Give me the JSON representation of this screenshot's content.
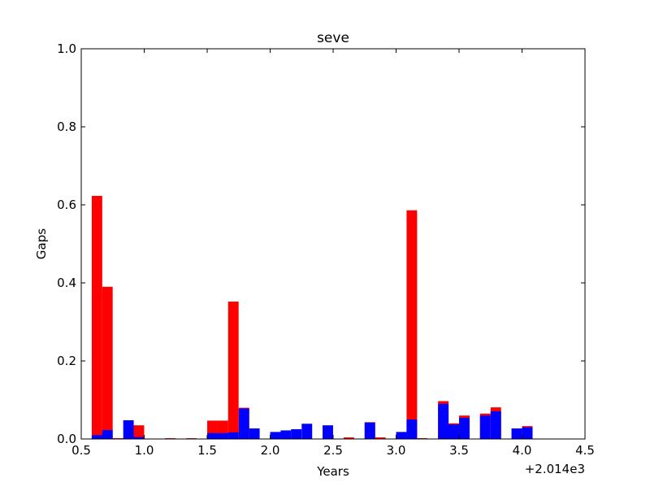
{
  "chart_data": {
    "type": "bar",
    "title": "seve",
    "xlabel": "Years",
    "ylabel": "Gaps",
    "offset_label": "+2.014e3",
    "xlim": [
      0.5,
      4.5
    ],
    "ylim": [
      0.0,
      1.0
    ],
    "xticks": [
      0.5,
      1.0,
      1.5,
      2.0,
      2.5,
      3.0,
      3.5,
      4.0,
      4.5
    ],
    "xtick_labels": [
      "0.5",
      "1.0",
      "1.5",
      "2.0",
      "2.5",
      "3.0",
      "3.5",
      "4.0",
      "4.5"
    ],
    "yticks": [
      0.0,
      0.2,
      0.4,
      0.6,
      0.8,
      1.0
    ],
    "ytick_labels": [
      "0.0",
      "0.2",
      "0.4",
      "0.6",
      "0.8",
      "1.0"
    ],
    "grid": false,
    "legend": "none",
    "bar_width": 0.0833,
    "x": [
      0.625,
      0.708,
      0.792,
      0.875,
      0.958,
      1.042,
      1.125,
      1.208,
      1.292,
      1.375,
      1.458,
      1.542,
      1.625,
      1.708,
      1.792,
      1.875,
      1.958,
      2.042,
      2.125,
      2.208,
      2.292,
      2.375,
      2.458,
      2.542,
      2.625,
      2.708,
      2.792,
      2.875,
      2.958,
      3.042,
      3.125,
      3.208,
      3.292,
      3.375,
      3.458,
      3.542,
      3.625,
      3.708,
      3.792,
      3.875,
      3.958,
      4.042
    ],
    "series": [
      {
        "color": "#ff0000",
        "values": [
          0.623,
          0.39,
          0.002,
          0.0,
          0.035,
          0.0,
          0.0,
          0.002,
          0.0,
          0.002,
          0.0,
          0.047,
          0.047,
          0.352,
          0.08,
          0.0,
          0.0,
          0.0,
          0.0,
          0.0,
          0.0,
          0.0,
          0.0,
          0.0,
          0.004,
          0.0,
          0.043,
          0.004,
          0.0,
          0.0,
          0.586,
          0.002,
          0.0,
          0.097,
          0.04,
          0.06,
          0.0,
          0.065,
          0.081,
          0.0,
          0.0,
          0.033
        ]
      },
      {
        "color": "#0000ff",
        "values": [
          0.01,
          0.023,
          0.0,
          0.048,
          0.005,
          0.0,
          0.0,
          0.0,
          0.0,
          0.0,
          0.0,
          0.015,
          0.015,
          0.017,
          0.078,
          0.027,
          0.0,
          0.018,
          0.022,
          0.025,
          0.039,
          0.0,
          0.035,
          0.0,
          0.0,
          0.0,
          0.042,
          0.0,
          0.0,
          0.018,
          0.05,
          0.0,
          0.0,
          0.09,
          0.037,
          0.054,
          0.0,
          0.06,
          0.071,
          0.0,
          0.027,
          0.03
        ]
      }
    ]
  }
}
